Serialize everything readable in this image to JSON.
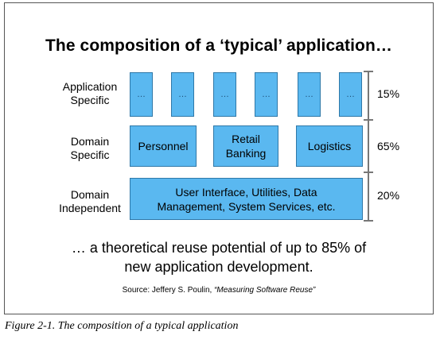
{
  "title": "The composition of a ‘typical’ application…",
  "rows": [
    {
      "label_line1": "Application",
      "label_line2": "Specific",
      "percent": "15%"
    },
    {
      "label_line1": "Domain",
      "label_line2": "Specific",
      "percent": "65%"
    },
    {
      "label_line1": "Domain",
      "label_line2": "Independent",
      "percent": "20%"
    }
  ],
  "app_boxes": [
    "…",
    "…",
    "…",
    "…",
    "…",
    "…"
  ],
  "domain_boxes": [
    {
      "line1": "Personnel",
      "line2": ""
    },
    {
      "line1": "Retail",
      "line2": "Banking"
    },
    {
      "line1": "Logistics",
      "line2": ""
    }
  ],
  "independent_box": {
    "line1": "User Interface, Utilities, Data",
    "line2": "Management, System Services, etc."
  },
  "footer": {
    "line1": "… a theoretical reuse potential of up to 85% of",
    "line2": "new application development."
  },
  "source": {
    "prefix": "Source: Jeffery S. Poulin, ",
    "work": "“Measuring Software Reuse”"
  },
  "caption": "Figure 2-1. The composition of a typical application",
  "colors": {
    "box_fill": "#5ab8f0",
    "box_border": "#2f78a8"
  }
}
